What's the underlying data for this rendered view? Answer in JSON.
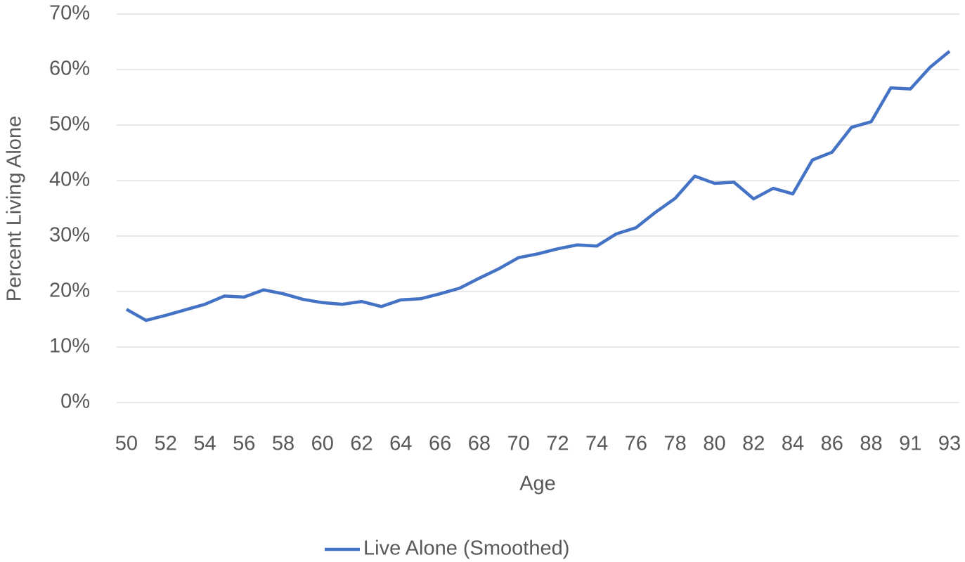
{
  "chart_data": {
    "type": "line",
    "x_label": "Age",
    "y_label": "Percent Living Alone",
    "categories": [
      50,
      null,
      52,
      null,
      54,
      null,
      56,
      null,
      58,
      null,
      60,
      null,
      62,
      null,
      64,
      null,
      66,
      null,
      68,
      null,
      70,
      null,
      72,
      null,
      74,
      null,
      76,
      null,
      78,
      null,
      80,
      null,
      82,
      null,
      84,
      null,
      86,
      null,
      88,
      null,
      91,
      null,
      93
    ],
    "series": [
      {
        "name": "Live Alone (Smoothed)",
        "color": "#4472c4",
        "values": [
          16.8,
          14.8,
          15.7,
          16.7,
          17.7,
          19.2,
          19.0,
          20.3,
          19.6,
          18.6,
          18.0,
          17.7,
          18.2,
          17.3,
          18.5,
          18.7,
          19.6,
          20.6,
          22.4,
          24.1,
          26.1,
          26.8,
          27.7,
          28.4,
          28.2,
          30.4,
          31.5,
          34.3,
          36.8,
          40.8,
          39.5,
          39.7,
          36.7,
          38.6,
          37.6,
          43.7,
          45.1,
          49.6,
          50.6,
          56.7,
          56.5,
          60.4,
          63.3
        ]
      }
    ],
    "ylim": [
      0,
      70
    ],
    "yticks": [
      {
        "value": 0,
        "label": "0%"
      },
      {
        "value": 10,
        "label": "10%"
      },
      {
        "value": 20,
        "label": "20%"
      },
      {
        "value": 30,
        "label": "30%"
      },
      {
        "value": 40,
        "label": "40%"
      },
      {
        "value": 50,
        "label": "50%"
      },
      {
        "value": 60,
        "label": "60%"
      },
      {
        "value": 70,
        "label": "70%"
      }
    ],
    "grid": true,
    "legend": "bottom"
  }
}
